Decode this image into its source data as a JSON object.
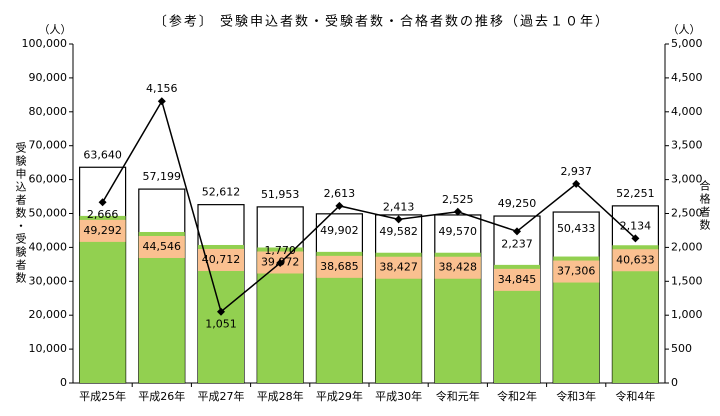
{
  "chart_data": {
    "type": "bar",
    "title": "〔参考〕 受験申込者数・受験者数・合格者数の推移（過去１０年）",
    "ylabel_unit": "（人）",
    "y2label_unit": "（人）",
    "ylabel": "受験申込者数・受験者数",
    "y2label": "合格者数",
    "categories": [
      "平成25年",
      "平成26年",
      "平成27年",
      "平成28年",
      "平成29年",
      "平成30年",
      "令和元年",
      "令和2年",
      "令和3年",
      "令和4年"
    ],
    "series": [
      {
        "type": "bar",
        "color": "#ffffff",
        "values": [
          63640,
          57199,
          52612,
          51953,
          49902,
          49582,
          49570,
          49250,
          50433,
          52251
        ],
        "value_labels": [
          "63,640",
          "57,199",
          "52,612",
          "51,953",
          "49,902",
          "49,582",
          "49,570",
          "49,250",
          "50,433",
          "52,251"
        ]
      },
      {
        "type": "bar",
        "color": "#92d050",
        "label_color": "#fac090",
        "values": [
          49292,
          44546,
          40712,
          39972,
          38685,
          38427,
          38428,
          34845,
          37306,
          40633
        ],
        "value_labels": [
          "49,292",
          "44,546",
          "40,712",
          "39,972",
          "38,685",
          "38,427",
          "38,428",
          "34,845",
          "37,306",
          "40,633"
        ]
      },
      {
        "type": "line",
        "axis": "y2",
        "color": "#000000",
        "values": [
          2666,
          4156,
          1051,
          1770,
          2613,
          2413,
          2525,
          2237,
          2937,
          2134
        ],
        "value_labels": [
          "2,666",
          "4,156",
          "1,051",
          "1,770",
          "2,613",
          "2,413",
          "2,525",
          "2,237",
          "2,937",
          "2,134"
        ]
      }
    ],
    "ylim": [
      0,
      100000
    ],
    "yticks": [
      0,
      {
        "value": 10000,
        "label": "10,000"
      },
      {
        "value": 20000,
        "label": "20,000"
      },
      {
        "value": 30000,
        "label": "30,000"
      },
      {
        "value": 40000,
        "label": "40,000"
      },
      {
        "value": 50000,
        "label": "50,000"
      },
      {
        "value": 60000,
        "label": "60,000"
      },
      {
        "value": 70000,
        "label": "70,000"
      },
      {
        "value": 80000,
        "label": "80,000"
      },
      {
        "value": 90000,
        "label": "90,000"
      },
      {
        "value": 100000,
        "label": "100,000"
      }
    ],
    "y2lim": [
      0,
      5000
    ],
    "y2ticks": [
      0,
      500,
      {
        "value": 1000,
        "label": "1,000"
      },
      {
        "value": 1500,
        "label": "1,500"
      },
      {
        "value": 2000,
        "label": "2,000"
      },
      {
        "value": 2500,
        "label": "2,500"
      },
      {
        "value": 3000,
        "label": "3,000"
      },
      {
        "value": 3500,
        "label": "3,500"
      },
      {
        "value": 4000,
        "label": "4,000"
      },
      {
        "value": 4500,
        "label": "4,500"
      },
      {
        "value": 5000,
        "label": "5,000"
      }
    ],
    "grid": false
  }
}
